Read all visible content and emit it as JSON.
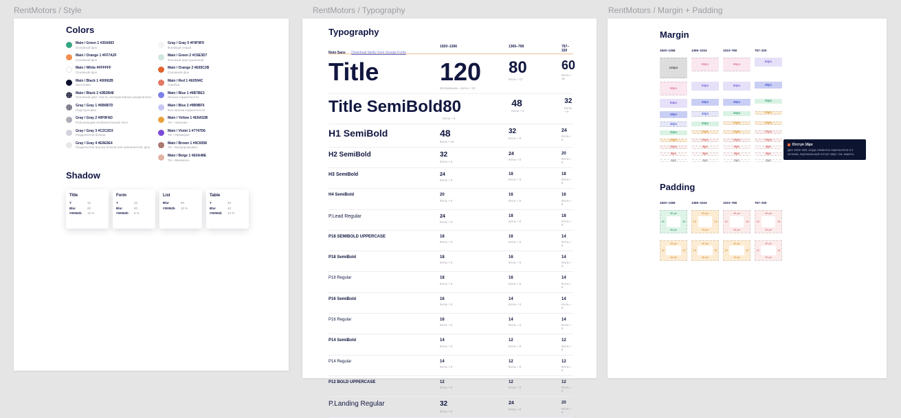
{
  "frames": {
    "style": "RentMotors / Style",
    "typography": "RentMotors / Typography",
    "spacing": "RentMotors / Margin + Padding"
  },
  "style_board": {
    "colors_heading": "Colors",
    "shadow_heading": "Shadow",
    "swatch_columns": [
      [
        {
          "name": "Main / Green 1",
          "hex": "#35A683",
          "desc": "Основной фон",
          "fill": "#35A683",
          "pattern": "solid"
        },
        {
          "name": "Main / Orange 1",
          "hex": "#FF7A2F",
          "desc": "Основной фон",
          "fill": "#F07A2F",
          "pattern": "dots"
        },
        {
          "name": "Main / White",
          "hex": "#FFFFFF",
          "desc": "Основной фон",
          "fill": "#FFFFFF",
          "pattern": "outline"
        },
        {
          "name": "Main / Black 1",
          "hex": "#00062B",
          "desc": "Заголовки",
          "fill": "#0A0D2B",
          "pattern": "solid"
        },
        {
          "name": "Main / Black 2",
          "hex": "#2B2B48",
          "desc": "Основной цвет текста, интерактивные разделители",
          "fill": "#23233F",
          "pattern": "dots"
        },
        {
          "name": "Gray / Gray 1",
          "hex": "#6B6B7D",
          "desc": "Подстрочники",
          "fill": "#6B6B7D",
          "pattern": "dots"
        },
        {
          "name": "Gray / Gray 2",
          "hex": "#9F9FAD",
          "desc": "Поясняющий необязательный текст",
          "fill": "#9F9FAD",
          "pattern": "dots"
        },
        {
          "name": "Gray / Gray 3",
          "hex": "#C2C2D3",
          "desc": "Разделители блоков",
          "fill": "#C9C9D6",
          "pattern": "dots"
        },
        {
          "name": "Gray / Gray 4",
          "hex": "#E0E0E4",
          "desc": "Разделители внутри блоков или компонентов, фон",
          "fill": "#E4E4E8",
          "pattern": "dots"
        }
      ],
      [
        {
          "name": "Gray / Gray 5",
          "hex": "#F9F9F9",
          "desc": "Фоновый серый",
          "fill": "#F2F2F5",
          "pattern": "dots"
        },
        {
          "name": "Main / Green 2",
          "hex": "#C6E3D7",
          "desc": "Фоновый приглушенный",
          "fill": "#C6E3D7",
          "pattern": "dots"
        },
        {
          "name": "Main / Orange 2",
          "hex": "#E65C2B",
          "desc": "Основной фон",
          "fill": "#E2622F",
          "pattern": "solid"
        },
        {
          "name": "Main / Red 1",
          "hex": "#E0594C",
          "desc": "Ошибка",
          "fill": "#DE5E47",
          "pattern": "dots"
        },
        {
          "name": "Main / Blue 1",
          "hex": "#6B7BE3",
          "desc": "Иконки корректности",
          "fill": "#7B7FE8",
          "pattern": "solid"
        },
        {
          "name": "Main / Blue 2",
          "hex": "#9B9BF0",
          "desc": "Фон иконки корректности",
          "fill": "#BBBCF2",
          "pattern": "dots"
        },
        {
          "name": "Main / Yellow 1",
          "hex": "#E6A52B",
          "desc": "Тег «Эконом»",
          "fill": "#E8A23C",
          "pattern": "solid"
        },
        {
          "name": "Main / Violet 1",
          "hex": "#7747D6",
          "desc": "Тег «Премиум»",
          "fill": "#7A4BD8",
          "pattern": "solid"
        },
        {
          "name": "Main / Brown 1",
          "hex": "#9C6058",
          "desc": "Тег «Внедорожники»",
          "fill": "#9A5F55",
          "pattern": "dots"
        },
        {
          "name": "Main / Beige 1",
          "hex": "#E0A48E",
          "desc": "Тег «Минивэн»",
          "fill": "#DCA593",
          "pattern": "dots"
        }
      ]
    ],
    "shadow_cards": [
      {
        "title": "Title",
        "rows": [
          [
            "Y",
            "12"
          ],
          [
            "Blur",
            "50"
          ],
          [
            "#00062b",
            "10 %"
          ]
        ]
      },
      {
        "title": "Form",
        "rows": [
          [
            "Y",
            "32"
          ],
          [
            "Blur",
            "50"
          ],
          [
            "#00062b",
            "8 %"
          ]
        ]
      },
      {
        "title": "List",
        "rows": [
          [
            "Blur",
            "50"
          ],
          [
            "#00062b",
            "10 %"
          ]
        ]
      },
      {
        "title": "Table",
        "rows": [
          [
            "Y",
            "32"
          ],
          [
            "Blur",
            "40"
          ],
          [
            "#00062b",
            "12 %"
          ]
        ]
      }
    ]
  },
  "typography_board": {
    "heading": "Typography",
    "font_name": "Noto Sans",
    "font_link_label": "Download family from Google Fonts",
    "breakpoints": [
      "1920–1366",
      "1365–768",
      "767–320"
    ],
    "default_caption": "Кегль + 8",
    "rows": [
      {
        "label": "Title",
        "sizes": [
          120,
          80,
          60
        ],
        "captions": [
          "Интерлиньяж = Кегль + 16",
          "Кегль + 12",
          "Кегль + 16"
        ]
      },
      {
        "label": "Title SemiBold",
        "sizes": [
          80,
          48,
          32
        ]
      },
      {
        "label": "H1 SemiBold",
        "sizes": [
          48,
          32,
          24
        ],
        "captions": [
          "Кегль + 16",
          "Кегль + 8",
          "Кегль + 8"
        ]
      },
      {
        "label": "H2 SemiBold",
        "sizes": [
          32,
          24,
          20
        ]
      },
      {
        "label": "H3 SemiBold",
        "sizes": [
          24,
          18,
          18
        ]
      },
      {
        "label": "H4 SemiBold",
        "sizes": [
          20,
          16,
          16
        ]
      },
      {
        "label": "P.Lead Regular",
        "sizes": [
          24,
          18,
          18
        ]
      },
      {
        "label": "P18 SEMIBOLD UPPERCASE",
        "sizes": [
          18,
          16,
          14
        ]
      },
      {
        "label": "P18 SemiBold",
        "sizes": [
          18,
          16,
          14
        ]
      },
      {
        "label": "P18 Regular",
        "sizes": [
          18,
          16,
          14
        ]
      },
      {
        "label": "P16 SemiBold",
        "sizes": [
          16,
          14,
          14
        ]
      },
      {
        "label": "P16 Regular",
        "sizes": [
          16,
          14,
          14
        ]
      },
      {
        "label": "P14 SemiBold",
        "sizes": [
          14,
          12,
          12
        ]
      },
      {
        "label": "P14 Regular",
        "sizes": [
          14,
          12,
          12
        ]
      },
      {
        "label": "P12 BOLD UPPERCASE",
        "sizes": [
          12,
          12,
          12
        ]
      },
      {
        "label": "P.Landing Regular",
        "sizes": [
          32,
          24,
          20
        ]
      }
    ]
  },
  "spacing_board": {
    "margin_heading": "Margin",
    "padding_heading": "Padding",
    "breakpoints": [
      "1920–1366",
      "1365–1024",
      "1023–768",
      "767–320"
    ],
    "palette": {
      "gray": {
        "bg": "#D8D8D8",
        "text": "#4A4A55",
        "dashed": true
      },
      "pink": {
        "bg": "#FAE3ED",
        "text": "#DD7BA4",
        "dashed": true
      },
      "purple": {
        "bg": "#E6E0F8",
        "text": "#7B5FD8",
        "dashed": false
      },
      "blue": {
        "bg": "#C9CEF4",
        "text": "#4C5BD4",
        "dashed": false
      },
      "bluedot": {
        "bg": "#E2E4F8",
        "text": "#5B68D8",
        "dashed": true
      },
      "green": {
        "bg": "#D9F2E4",
        "text": "#3FA478",
        "dashed": false
      },
      "orange": {
        "bg": "#FCE9CD",
        "text": "#DD9A3F",
        "dashed": true
      },
      "pinkdot": {
        "bg": "#FBE9E9",
        "text": "#DC7B7B",
        "dashed": true
      },
      "reddot": {
        "bg": "#FDF3F3",
        "text": "#D96464",
        "dashed": true
      },
      "line": {
        "bg": "transparent",
        "text": "#8A8A93",
        "dashed": true
      }
    },
    "margin_rows": [
      {
        "values": [
          144,
          96,
          96,
          64
        ],
        "styles": [
          "gray",
          "pink",
          "pink",
          "purple"
        ]
      },
      {
        "values": [
          96,
          64,
          64,
          48
        ],
        "styles": [
          "pink",
          "purple",
          "purple",
          "blue"
        ]
      },
      {
        "values": [
          64,
          48,
          48,
          32
        ],
        "styles": [
          "purple",
          "blue",
          "blue",
          "green"
        ]
      },
      {
        "values": [
          48,
          40,
          32,
          24
        ],
        "styles": [
          "blue",
          "bluedot",
          "green",
          "orange"
        ]
      },
      {
        "values": [
          40,
          32,
          24,
          24
        ],
        "styles": [
          "bluedot",
          "green",
          "orange",
          "orange"
        ]
      },
      {
        "values": [
          32,
          24,
          24,
          16
        ],
        "styles": [
          "green",
          "orange",
          "orange",
          "pinkdot"
        ]
      },
      {
        "values": [
          24,
          16,
          16,
          16
        ],
        "styles": [
          "orange",
          "pinkdot",
          "pinkdot",
          "pinkdot"
        ]
      },
      {
        "values": [
          16,
          8,
          8,
          8
        ],
        "styles": [
          "pinkdot",
          "reddot",
          "reddot",
          "reddot"
        ]
      },
      {
        "values": [
          8,
          8,
          8,
          8
        ],
        "styles": [
          "reddot",
          "reddot",
          "reddot",
          "reddot"
        ]
      },
      {
        "values": [
          4,
          4,
          4,
          4
        ],
        "styles": [
          "line",
          "line",
          "line",
          "line"
        ]
      }
    ],
    "comment": {
      "title": "Отступ 16px",
      "body": "Для 1023–320, когда элементы переносятся в 2 колонки, вертикальный отступ 16px. См. макеты"
    },
    "padding_rows": [
      [
        {
          "value": 32,
          "style": "green"
        },
        {
          "value": 24,
          "style": "orange"
        },
        {
          "value": 16,
          "style": "pinkdot"
        },
        {
          "value": 16,
          "style": "pinkdot"
        }
      ],
      [
        {
          "value": 24,
          "style": "orange"
        },
        {
          "value": 16,
          "style": "orange"
        },
        {
          "value": 12,
          "style": "orange"
        },
        {
          "value": 12,
          "style": "pinkdot"
        }
      ]
    ]
  }
}
